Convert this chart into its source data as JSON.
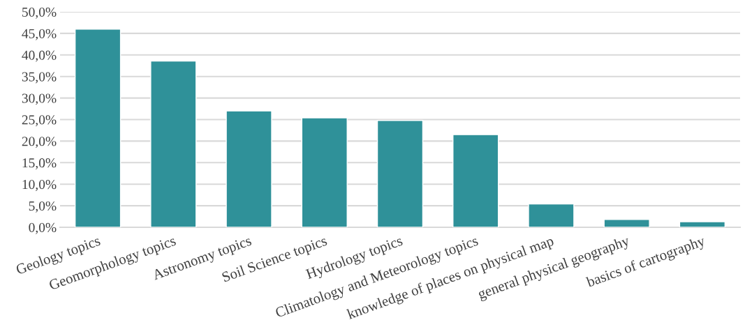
{
  "chart_data": {
    "type": "bar",
    "categories": [
      "Geology topics",
      "Geomorphology topics",
      "Astronomy topics",
      "Soil Science topics",
      "Hydrology topics",
      "Climatology and Meteorology topics",
      "knowledge of places on physical map",
      "general physical geography",
      "basics of cartography"
    ],
    "values": [
      46.0,
      38.6,
      27.0,
      25.4,
      24.8,
      21.5,
      5.4,
      1.8,
      1.3
    ],
    "color": "#2f9199",
    "ylim": [
      0,
      50
    ],
    "yticks": [
      {
        "value": 0,
        "label": "0,0%"
      },
      {
        "value": 5,
        "label": "5,0%"
      },
      {
        "value": 10,
        "label": "10,0%"
      },
      {
        "value": 15,
        "label": "15,0%"
      },
      {
        "value": 20,
        "label": "20,0%"
      },
      {
        "value": 25,
        "label": "25,0%"
      },
      {
        "value": 30,
        "label": "30,0%"
      },
      {
        "value": 35,
        "label": "35,0%"
      },
      {
        "value": 40,
        "label": "40,0%"
      },
      {
        "value": 45,
        "label": "45,0%"
      },
      {
        "value": 50,
        "label": "50,0%"
      }
    ],
    "grid": "y"
  }
}
